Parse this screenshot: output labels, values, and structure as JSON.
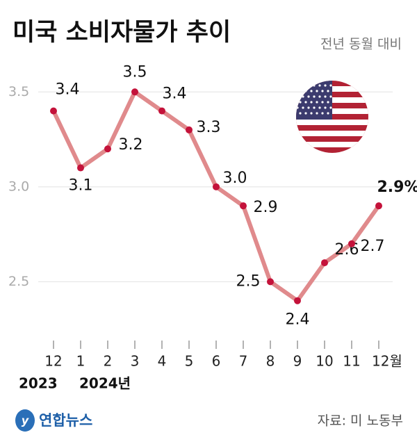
{
  "chart_data": {
    "type": "line",
    "title": "미국 소비자물가 추이",
    "subtitle": "전년 동월 대비",
    "categories": [
      "12",
      "1",
      "2",
      "3",
      "4",
      "5",
      "6",
      "7",
      "8",
      "9",
      "10",
      "11",
      "12월"
    ],
    "years": [
      "2023",
      "2024년"
    ],
    "values": [
      3.4,
      3.1,
      3.2,
      3.5,
      3.4,
      3.3,
      3.0,
      2.9,
      2.5,
      2.4,
      2.6,
      2.7,
      2.9
    ],
    "value_labels": [
      "3.4",
      "3.1",
      "3.2",
      "3.5",
      "3.4",
      "3.3",
      "3.0",
      "2.9",
      "2.5",
      "2.4",
      "2.6",
      "2.7",
      "2.9%"
    ],
    "color": "#e08a8c",
    "marker_color": "#c4123a",
    "ylim": [
      2.3,
      3.6
    ],
    "yticks": [
      2.5,
      {
        "value": 3,
        "label": "3.0"
      },
      3.5
    ],
    "grid": true,
    "logo": "연합뉴스",
    "source": "자료: 미 노동부"
  }
}
